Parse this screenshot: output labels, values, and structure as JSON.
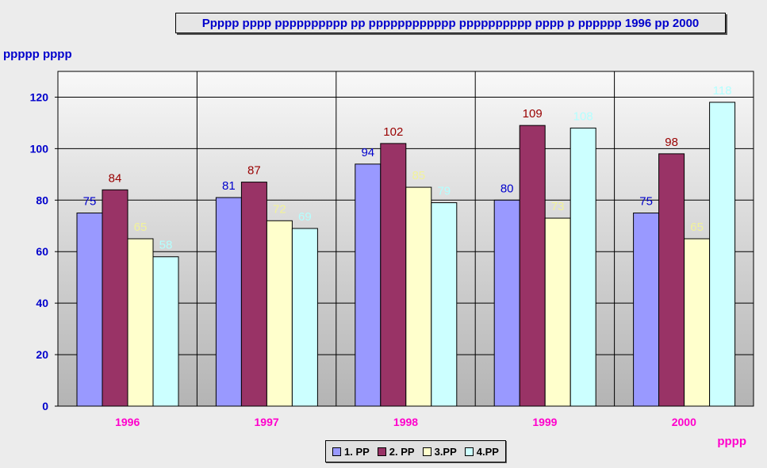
{
  "chart_data": {
    "type": "bar",
    "title": "Ppppp pppp pppppppppp pp pppppppppppp pppppppppp pppp p pppppp 1996 pp 2000",
    "ylabel": "ppppp pppp",
    "xlabel": "pppp",
    "categories": [
      "1996",
      "1997",
      "1998",
      "1999",
      "2000"
    ],
    "ylim": [
      0,
      130
    ],
    "yticks": [
      0,
      20,
      40,
      60,
      80,
      100,
      120
    ],
    "grid": true,
    "legend_position": "bottom",
    "series": [
      {
        "name": "1. PP",
        "color": "#9999ff",
        "label_color": "#0000cc",
        "values": [
          75,
          81,
          94,
          80,
          75
        ]
      },
      {
        "name": "2. PP",
        "color": "#993366",
        "label_color": "#990000",
        "values": [
          84,
          87,
          102,
          109,
          98
        ]
      },
      {
        "name": "3.PP",
        "color": "#ffffcc",
        "label_color": "#f2f29a",
        "values": [
          65,
          72,
          85,
          73,
          65
        ]
      },
      {
        "name": "4.PP",
        "color": "#ccffff",
        "label_color": "#b3ffff",
        "values": [
          58,
          69,
          79,
          108,
          118
        ]
      }
    ]
  }
}
